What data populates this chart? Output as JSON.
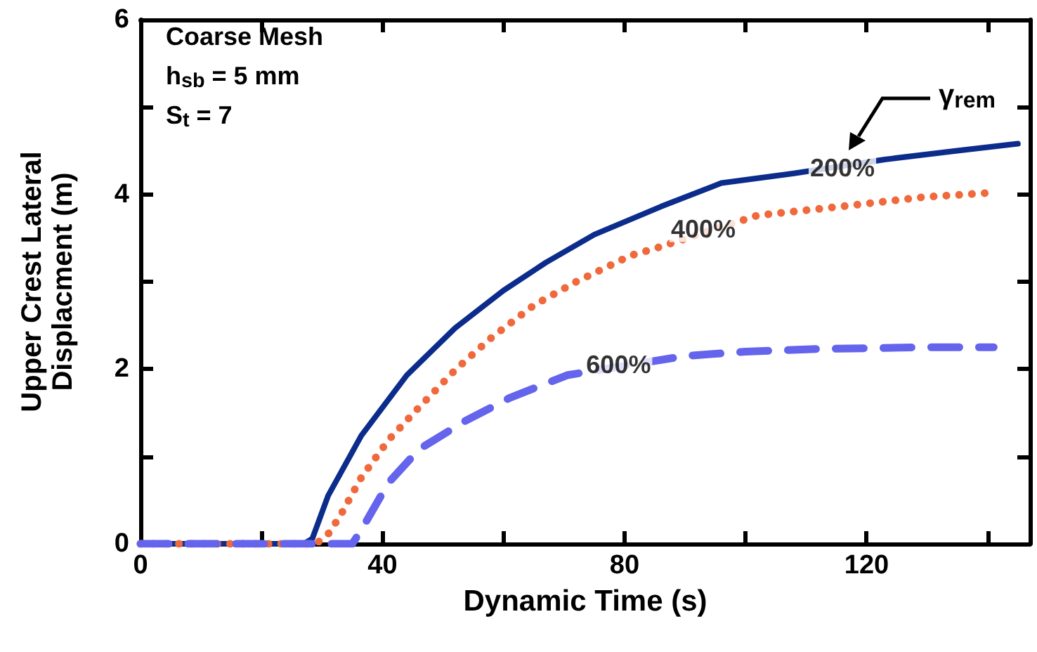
{
  "chart_data": {
    "type": "line",
    "xlabel": "Dynamic Time (s)",
    "ylabel": "Upper Crest Lateral\nDisplacment (m)",
    "xlim": [
      0,
      147
    ],
    "ylim": [
      0,
      6
    ],
    "xticks": [
      0,
      {
        "value": 20,
        "label": null
      },
      40,
      {
        "value": 60,
        "label": null
      },
      80,
      {
        "value": 100,
        "label": null
      },
      120,
      {
        "value": 140,
        "label": null
      }
    ],
    "yticks": [
      0,
      {
        "value": 1,
        "label": null
      },
      2,
      {
        "value": 3,
        "label": null
      },
      4,
      {
        "value": 5,
        "label": null
      },
      6
    ],
    "grid": false,
    "marker": "none",
    "series": [
      {
        "color": "#0c2c8c",
        "line_style": "solid",
        "x": [
          0,
          10,
          20,
          27,
          28.4,
          31,
          36.5,
          44,
          52,
          60,
          67,
          75,
          86,
          96,
          108,
          123,
          135,
          145
        ],
        "values": [
          0,
          0,
          0,
          0,
          0.06,
          0.55,
          1.24,
          1.93,
          2.47,
          2.9,
          3.22,
          3.54,
          3.86,
          4.13,
          4.24,
          4.4,
          4.5,
          4.58
        ]
      },
      {
        "color": "#f0693c",
        "line_style": "dotted",
        "x": [
          0,
          10,
          20,
          29,
          31,
          33,
          36.5,
          41,
          46,
          52,
          58,
          65,
          72,
          81,
          85,
          102,
          115.6,
          129.5,
          141
        ],
        "values": [
          0,
          0,
          0,
          0,
          0.11,
          0.32,
          0.76,
          1.19,
          1.56,
          1.99,
          2.36,
          2.73,
          3.0,
          3.3,
          3.38,
          3.76,
          3.86,
          3.97,
          4.02
        ]
      },
      {
        "color": "#6464ec",
        "line_style": "dashed",
        "x": [
          0,
          10,
          20,
          30,
          35,
          36.5,
          41,
          46,
          53.5,
          61,
          70.5,
          90,
          100,
          111.6,
          129.5,
          141
        ],
        "values": [
          0,
          0,
          0,
          0,
          0,
          0.16,
          0.7,
          1.08,
          1.4,
          1.67,
          1.93,
          2.15,
          2.2,
          2.23,
          2.25,
          2.25
        ]
      }
    ],
    "annotations": [
      "Coarse Mesh",
      "h$_{sb}$ = 5 mm",
      "S$_{t}$ = 7",
      "γ$_{rem}$",
      {
        "text": "200%",
        "x": 116,
        "y": 4.3
      },
      {
        "text": "400%",
        "x": 93,
        "y": 3.6
      },
      {
        "text": "600%",
        "x": 79,
        "y": 2.05
      }
    ]
  }
}
